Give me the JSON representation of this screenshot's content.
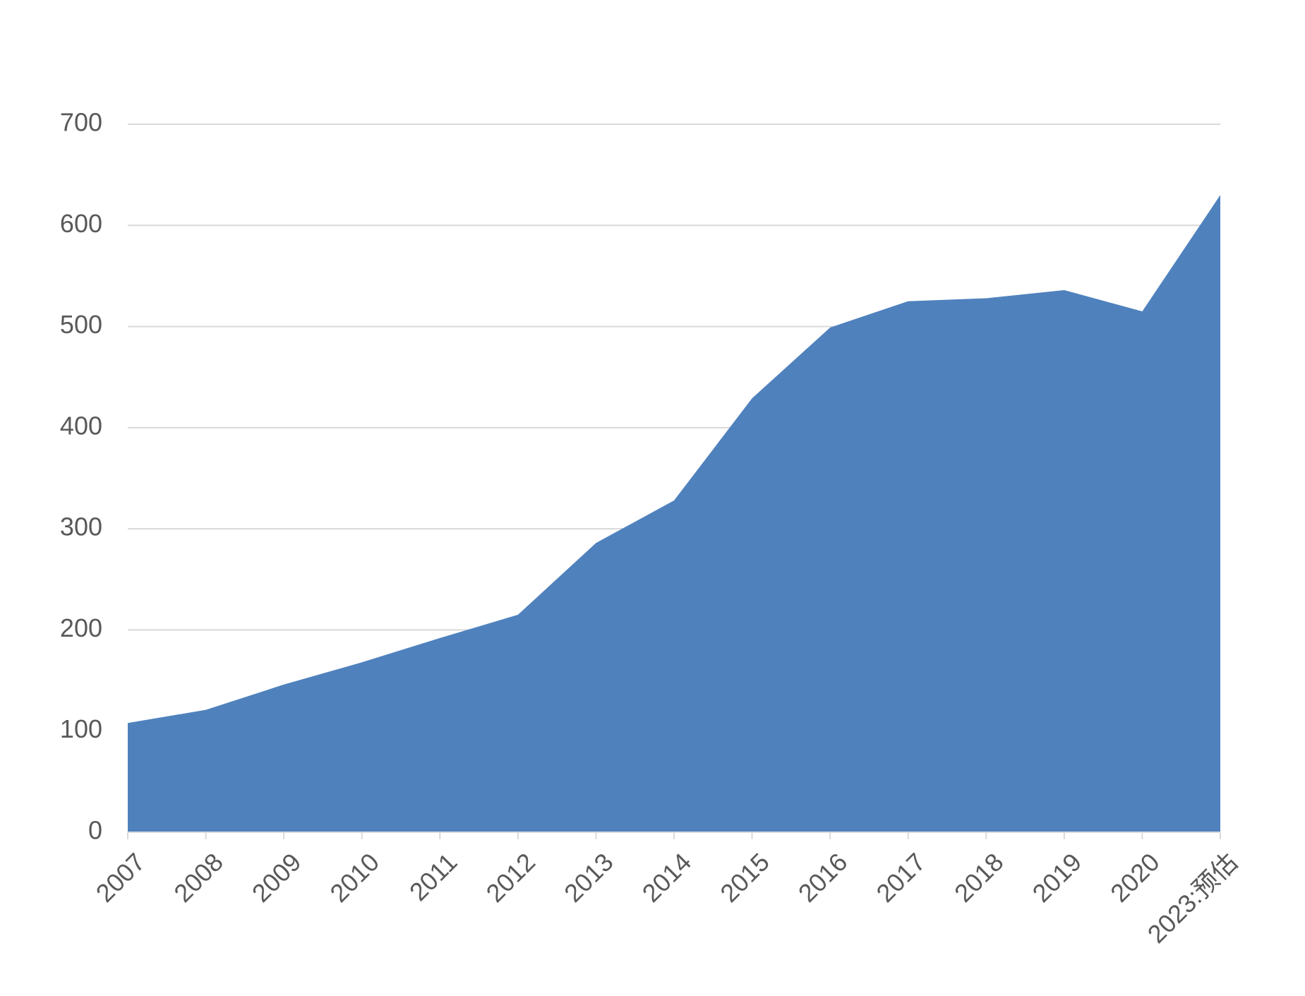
{
  "chart_data": {
    "type": "area",
    "title": "",
    "xlabel": "",
    "ylabel": "",
    "categories": [
      "2007",
      "2008",
      "2009",
      "2010",
      "2011",
      "2012",
      "2013",
      "2014",
      "2015",
      "2016",
      "2017",
      "2018",
      "2019",
      "2020",
      "2023:预估"
    ],
    "values": [
      108,
      121,
      146,
      168,
      192,
      215,
      286,
      328,
      429,
      499,
      525,
      528,
      536,
      515,
      630
    ],
    "ylim": [
      0,
      700
    ],
    "yticks": [
      0,
      100,
      200,
      300,
      400,
      500,
      600,
      700
    ],
    "grid": true,
    "legend": "none",
    "colors": {
      "fill": "#4f81bd",
      "grid": "#d9d9d9",
      "axis": "#d9d9d9",
      "text": "#595959"
    }
  }
}
